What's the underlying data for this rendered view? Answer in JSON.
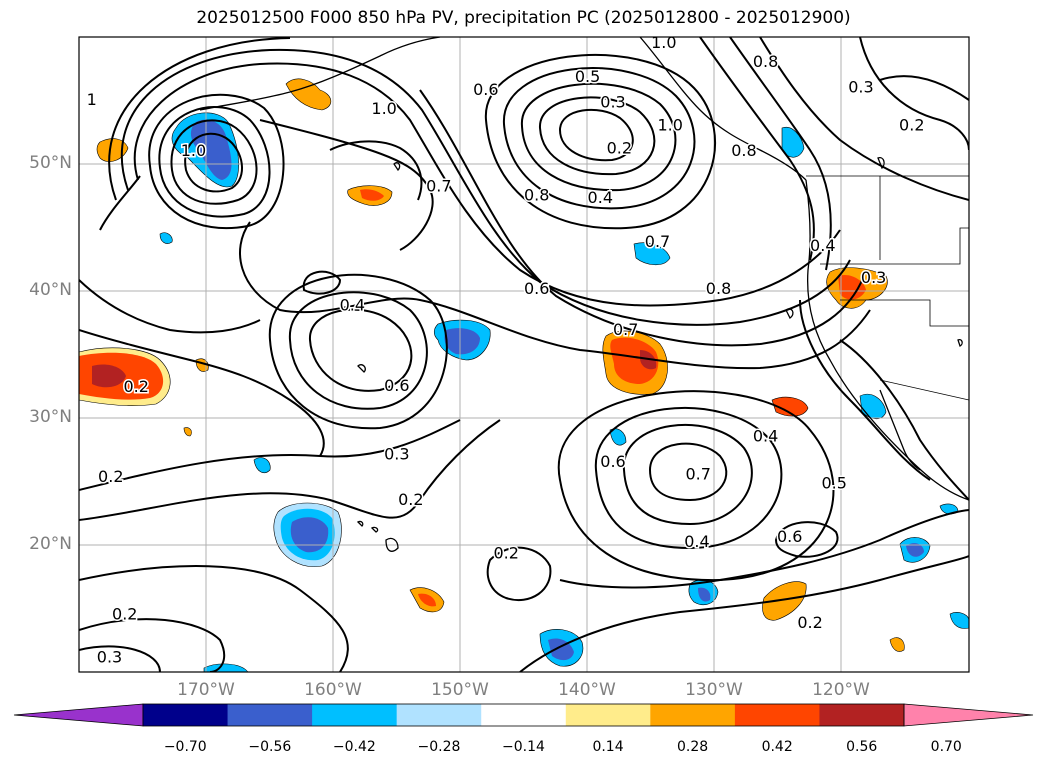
{
  "title": "2025012500 F000 850 hPa PV, precipitation PC (2025012800 - 2025012900)",
  "map": {
    "extent": {
      "lon_min": -180,
      "lon_max": -110,
      "lat_min": 10,
      "lat_max": 60
    },
    "longitude_labels": [
      "170°W",
      "160°W",
      "150°W",
      "140°W",
      "130°W",
      "120°W"
    ],
    "latitude_labels": [
      "50°N",
      "40°N",
      "30°N",
      "20°N"
    ],
    "contour_labels": [
      {
        "text": "1.0",
        "lon": -171,
        "lat": 51
      },
      {
        "text": "1.0",
        "lon": -156,
        "lat": 54.3
      },
      {
        "text": "1",
        "lon": -179,
        "lat": 55
      },
      {
        "text": "0.6",
        "lon": -148,
        "lat": 55.8
      },
      {
        "text": "0.5",
        "lon": -140,
        "lat": 56.8
      },
      {
        "text": "0.3",
        "lon": -138,
        "lat": 54.8
      },
      {
        "text": "0.2",
        "lon": -137.5,
        "lat": 51.2
      },
      {
        "text": "1.0",
        "lon": -133.5,
        "lat": 53
      },
      {
        "text": "0.8",
        "lon": -127.7,
        "lat": 51
      },
      {
        "text": "0.8",
        "lon": -126,
        "lat": 58
      },
      {
        "text": "1.0",
        "lon": -134,
        "lat": 59.5
      },
      {
        "text": "0.3",
        "lon": -118.5,
        "lat": 56
      },
      {
        "text": "0.2",
        "lon": -114.5,
        "lat": 53
      },
      {
        "text": "0.7",
        "lon": -151.7,
        "lat": 48.2
      },
      {
        "text": "0.8",
        "lon": -144,
        "lat": 47.5
      },
      {
        "text": "0.4",
        "lon": -139,
        "lat": 47.3
      },
      {
        "text": "0.7",
        "lon": -134.5,
        "lat": 43.8
      },
      {
        "text": "0.6",
        "lon": -144,
        "lat": 40.1
      },
      {
        "text": "0.8",
        "lon": -129.7,
        "lat": 40.1
      },
      {
        "text": "0.7",
        "lon": -137,
        "lat": 36.9
      },
      {
        "text": "0.4",
        "lon": -158.5,
        "lat": 38.8
      },
      {
        "text": "0.6",
        "lon": -155,
        "lat": 32.5
      },
      {
        "text": "0.4",
        "lon": -121.5,
        "lat": 43.5
      },
      {
        "text": "0.3",
        "lon": -117.5,
        "lat": 41
      },
      {
        "text": "0.2",
        "lon": -175.5,
        "lat": 32.4
      },
      {
        "text": "0.2",
        "lon": -177.5,
        "lat": 25.3
      },
      {
        "text": "0.3",
        "lon": -155,
        "lat": 27.1
      },
      {
        "text": "0.2",
        "lon": -153.9,
        "lat": 23.5
      },
      {
        "text": "0.6",
        "lon": -138,
        "lat": 26.5
      },
      {
        "text": "0.7",
        "lon": -131.3,
        "lat": 25.5
      },
      {
        "text": "0.4",
        "lon": -126,
        "lat": 28.5
      },
      {
        "text": "0.5",
        "lon": -120.6,
        "lat": 24.8
      },
      {
        "text": "0.4",
        "lon": -131.4,
        "lat": 20.2
      },
      {
        "text": "0.6",
        "lon": -124.1,
        "lat": 20.6
      },
      {
        "text": "0.2",
        "lon": -146.4,
        "lat": 19.3
      },
      {
        "text": "0.2",
        "lon": -122.5,
        "lat": 13.8
      },
      {
        "text": "0.2",
        "lon": -176.4,
        "lat": 14.5
      },
      {
        "text": "0.3",
        "lon": -177.6,
        "lat": 11.1
      }
    ]
  },
  "colorbar": {
    "levels": [
      -0.7,
      -0.56,
      -0.42,
      -0.28,
      -0.14,
      0.14,
      0.28,
      0.42,
      0.56,
      0.7
    ],
    "tick_labels": [
      "−0.70",
      "−0.56",
      "−0.42",
      "−0.28",
      "−0.14",
      "0.14",
      "0.28",
      "0.42",
      "0.56",
      "0.70"
    ],
    "colors": [
      "#9932cc",
      "#00008b",
      "#3a5fcd",
      "#00bfff",
      "#b0e2ff",
      "#ffffff",
      "#ffec8b",
      "#ffa500",
      "#ff4500",
      "#b22222",
      "#ff82ab"
    ]
  }
}
